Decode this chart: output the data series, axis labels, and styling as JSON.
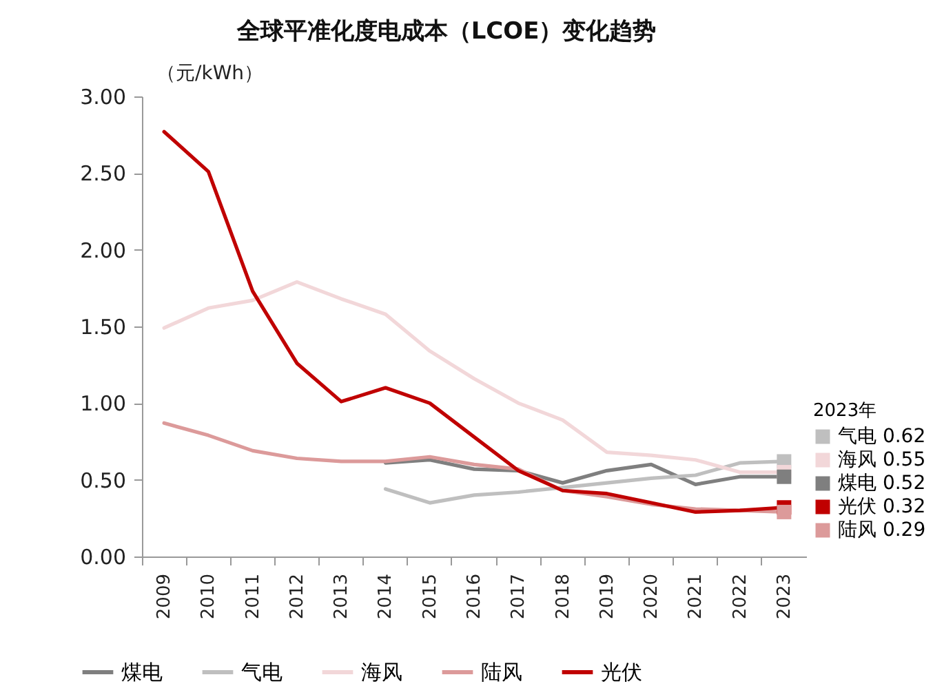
{
  "chart_data": {
    "type": "line",
    "title": "全球平准化度电成本（LCOE）变化趋势",
    "ylabel": "（元/kWh）",
    "categories": [
      "2009",
      "2010",
      "2011",
      "2012",
      "2013",
      "2014",
      "2015",
      "2016",
      "2017",
      "2018",
      "2019",
      "2020",
      "2021",
      "2022",
      "2023"
    ],
    "ylim": [
      0,
      3
    ],
    "yticks": [
      {
        "value": 0,
        "label": "0.00"
      },
      {
        "value": 0.5,
        "label": "0.50"
      },
      {
        "value": 1,
        "label": "1.00"
      },
      {
        "value": 1.5,
        "label": "1.50"
      },
      {
        "value": 2,
        "label": "2.00"
      },
      {
        "value": 2.5,
        "label": "2.50"
      },
      {
        "value": 3,
        "label": "3.00"
      }
    ],
    "grid": false,
    "legend": "bottom",
    "legend_title": "2023年",
    "series": [
      {
        "name": "煤电",
        "color": "#7f7f7f",
        "values": [
          null,
          null,
          null,
          null,
          null,
          0.61,
          0.63,
          0.57,
          0.56,
          0.48,
          0.56,
          0.6,
          0.47,
          0.52,
          0.52
        ]
      },
      {
        "name": "气电",
        "color": "#bfbfbf",
        "values": [
          null,
          null,
          null,
          null,
          null,
          0.44,
          0.35,
          0.4,
          0.42,
          0.45,
          0.48,
          0.51,
          0.53,
          0.61,
          0.62
        ]
      },
      {
        "name": "海风",
        "color": "#f2d7d9",
        "values": [
          1.49,
          1.62,
          1.67,
          1.79,
          1.68,
          1.58,
          1.34,
          1.16,
          1.0,
          0.89,
          0.68,
          0.66,
          0.63,
          0.55,
          0.55
        ]
      },
      {
        "name": "陆风",
        "color": "#dc9a9a",
        "values": [
          0.87,
          0.79,
          0.69,
          0.64,
          0.62,
          0.62,
          0.65,
          0.6,
          0.57,
          0.43,
          0.39,
          0.34,
          0.31,
          0.3,
          0.29
        ]
      },
      {
        "name": "光伏",
        "color": "#c00000",
        "values": [
          2.77,
          2.51,
          1.73,
          1.26,
          1.01,
          1.1,
          1.0,
          0.78,
          0.56,
          0.43,
          0.41,
          0.35,
          0.29,
          0.3,
          0.32
        ]
      }
    ],
    "annotations": [
      {
        "text": "气电 0.62",
        "x": "2023",
        "y": 0.62
      },
      {
        "text": "海风 0.55",
        "x": "2023",
        "y": 0.55
      },
      {
        "text": "煤电 0.52",
        "x": "2023",
        "y": 0.52
      },
      {
        "text": "光伏 0.32",
        "x": "2023",
        "y": 0.32
      },
      {
        "text": "陆风 0.29",
        "x": "2023",
        "y": 0.29
      }
    ]
  }
}
